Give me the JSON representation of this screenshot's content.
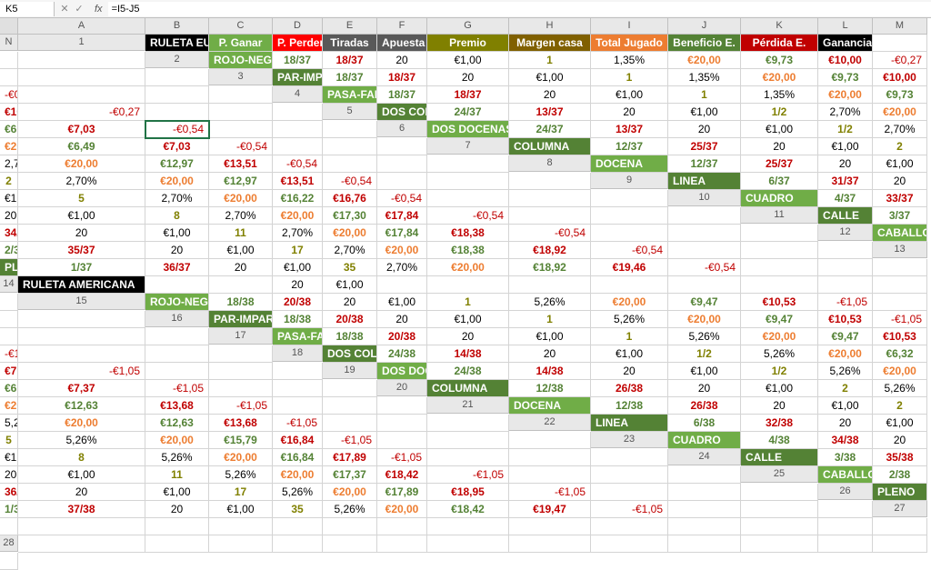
{
  "formula_bar": {
    "name_box": "K5",
    "fx_label": "fx",
    "formula": "=I5-J5"
  },
  "columns": [
    "A",
    "B",
    "C",
    "D",
    "E",
    "F",
    "G",
    "H",
    "I",
    "J",
    "K",
    "L",
    "M",
    "N"
  ],
  "headers": {
    "title": "RULETA EUROPEA",
    "p_ganar": "P. Ganar",
    "p_perder": "P. Perder",
    "tiradas": "Tiradas",
    "apuesta": "Apuesta",
    "premio": "Premio",
    "margen": "Margen casa",
    "jugado": "Total Jugado",
    "beneficio": "Beneficio E.",
    "perdida": "Pérdida E.",
    "ganancia": "Ganancia E."
  },
  "section2": "RULETA AMERICANA",
  "active_cell": {
    "row": 5,
    "col": "K"
  },
  "styling": {
    "header_colors": {
      "title": "#000000",
      "p_ganar": "#70ad47",
      "p_perder": "#ff0000",
      "tiradas": "#595959",
      "apuesta": "#595959",
      "premio": "#808000",
      "margen": "#806000",
      "jugado": "#ed7d31",
      "beneficio": "#548235",
      "perdida": "#c00000",
      "ganancia": "#000000"
    },
    "label_colors": {
      "dark": "#548235",
      "light": "#70ad47",
      "section": "#000000"
    },
    "text_colors": {
      "p_ganar": "#548235",
      "p_perder": "#c00000",
      "premio": "#808000",
      "jugado": "#ed7d31",
      "beneficio": "#548235",
      "perdida": "#c00000",
      "ganancia_neg": "#c00000"
    },
    "grid_color": "#d4d4d4",
    "header_border": "#c0c0c0",
    "font_family": "Arial",
    "font_size": 12,
    "active_outline": "#217346"
  },
  "rows_eu": [
    {
      "n": 2,
      "alt": true,
      "label": "ROJO-NEGRO",
      "pg": "18/37",
      "pp": "18/37",
      "t": "20",
      "a": "€1,00",
      "pr": "1",
      "m": "1,35%",
      "tj": "€20,00",
      "be": "€9,73",
      "pe": "€10,00",
      "g": "-€0,27"
    },
    {
      "n": 3,
      "alt": false,
      "label": "PAR-IMPAR",
      "pg": "18/37",
      "pp": "18/37",
      "t": "20",
      "a": "€1,00",
      "pr": "1",
      "m": "1,35%",
      "tj": "€20,00",
      "be": "€9,73",
      "pe": "€10,00",
      "g": "-€0,27"
    },
    {
      "n": 4,
      "alt": true,
      "label": "PASA-FALTA",
      "pg": "18/37",
      "pp": "18/37",
      "t": "20",
      "a": "€1,00",
      "pr": "1",
      "m": "1,35%",
      "tj": "€20,00",
      "be": "€9,73",
      "pe": "€10,00",
      "g": "-€0,27"
    },
    {
      "n": 5,
      "alt": false,
      "label": "DOS COLUMNAS",
      "pg": "24/37",
      "pp": "13/37",
      "t": "20",
      "a": "€1,00",
      "pr": "1/2",
      "m": "2,70%",
      "tj": "€20,00",
      "be": "€6,49",
      "pe": "€7,03",
      "g": "-€0,54"
    },
    {
      "n": 6,
      "alt": true,
      "label": "DOS DOCENAS",
      "pg": "24/37",
      "pp": "13/37",
      "t": "20",
      "a": "€1,00",
      "pr": "1/2",
      "m": "2,70%",
      "tj": "€20,00",
      "be": "€6,49",
      "pe": "€7,03",
      "g": "-€0,54"
    },
    {
      "n": 7,
      "alt": false,
      "label": "COLUMNA",
      "pg": "12/37",
      "pp": "25/37",
      "t": "20",
      "a": "€1,00",
      "pr": "2",
      "m": "2,70%",
      "tj": "€20,00",
      "be": "€12,97",
      "pe": "€13,51",
      "g": "-€0,54"
    },
    {
      "n": 8,
      "alt": true,
      "label": "DOCENA",
      "pg": "12/37",
      "pp": "25/37",
      "t": "20",
      "a": "€1,00",
      "pr": "2",
      "m": "2,70%",
      "tj": "€20,00",
      "be": "€12,97",
      "pe": "€13,51",
      "g": "-€0,54"
    },
    {
      "n": 9,
      "alt": false,
      "label": "LINEA",
      "pg": "6/37",
      "pp": "31/37",
      "t": "20",
      "a": "€1,00",
      "pr": "5",
      "m": "2,70%",
      "tj": "€20,00",
      "be": "€16,22",
      "pe": "€16,76",
      "g": "-€0,54"
    },
    {
      "n": 10,
      "alt": true,
      "label": "CUADRO",
      "pg": "4/37",
      "pp": "33/37",
      "t": "20",
      "a": "€1,00",
      "pr": "8",
      "m": "2,70%",
      "tj": "€20,00",
      "be": "€17,30",
      "pe": "€17,84",
      "g": "-€0,54"
    },
    {
      "n": 11,
      "alt": false,
      "label": "CALLE",
      "pg": "3/37",
      "pp": "34/37",
      "t": "20",
      "a": "€1,00",
      "pr": "11",
      "m": "2,70%",
      "tj": "€20,00",
      "be": "€17,84",
      "pe": "€18,38",
      "g": "-€0,54"
    },
    {
      "n": 12,
      "alt": true,
      "label": "CABALLO",
      "pg": "2/37",
      "pp": "35/37",
      "t": "20",
      "a": "€1,00",
      "pr": "17",
      "m": "2,70%",
      "tj": "€20,00",
      "be": "€18,38",
      "pe": "€18,92",
      "g": "-€0,54"
    },
    {
      "n": 13,
      "alt": false,
      "label": "PLENO",
      "pg": "1/37",
      "pp": "36/37",
      "t": "20",
      "a": "€1,00",
      "pr": "35",
      "m": "2,70%",
      "tj": "€20,00",
      "be": "€18,92",
      "pe": "€19,46",
      "g": "-€0,54"
    }
  ],
  "row14": {
    "n": 14,
    "t": "20",
    "a": "€1,00"
  },
  "rows_us": [
    {
      "n": 15,
      "alt": true,
      "label": "ROJO-NEGRO",
      "pg": "18/38",
      "pp": "20/38",
      "t": "20",
      "a": "€1,00",
      "pr": "1",
      "m": "5,26%",
      "tj": "€20,00",
      "be": "€9,47",
      "pe": "€10,53",
      "g": "-€1,05"
    },
    {
      "n": 16,
      "alt": false,
      "label": "PAR-IMPAR",
      "pg": "18/38",
      "pp": "20/38",
      "t": "20",
      "a": "€1,00",
      "pr": "1",
      "m": "5,26%",
      "tj": "€20,00",
      "be": "€9,47",
      "pe": "€10,53",
      "g": "-€1,05"
    },
    {
      "n": 17,
      "alt": true,
      "label": "PASA-FALTA",
      "pg": "18/38",
      "pp": "20/38",
      "t": "20",
      "a": "€1,00",
      "pr": "1",
      "m": "5,26%",
      "tj": "€20,00",
      "be": "€9,47",
      "pe": "€10,53",
      "g": "-€1,05"
    },
    {
      "n": 18,
      "alt": false,
      "label": "DOS COLUMNAS",
      "pg": "24/38",
      "pp": "14/38",
      "t": "20",
      "a": "€1,00",
      "pr": "1/2",
      "m": "5,26%",
      "tj": "€20,00",
      "be": "€6,32",
      "pe": "€7,37",
      "g": "-€1,05"
    },
    {
      "n": 19,
      "alt": true,
      "label": "DOS DOCENAS",
      "pg": "24/38",
      "pp": "14/38",
      "t": "20",
      "a": "€1,00",
      "pr": "1/2",
      "m": "5,26%",
      "tj": "€20,00",
      "be": "€6,32",
      "pe": "€7,37",
      "g": "-€1,05"
    },
    {
      "n": 20,
      "alt": false,
      "label": "COLUMNA",
      "pg": "12/38",
      "pp": "26/38",
      "t": "20",
      "a": "€1,00",
      "pr": "2",
      "m": "5,26%",
      "tj": "€20,00",
      "be": "€12,63",
      "pe": "€13,68",
      "g": "-€1,05"
    },
    {
      "n": 21,
      "alt": true,
      "label": "DOCENA",
      "pg": "12/38",
      "pp": "26/38",
      "t": "20",
      "a": "€1,00",
      "pr": "2",
      "m": "5,26%",
      "tj": "€20,00",
      "be": "€12,63",
      "pe": "€13,68",
      "g": "-€1,05"
    },
    {
      "n": 22,
      "alt": false,
      "label": "LINEA",
      "pg": "6/38",
      "pp": "32/38",
      "t": "20",
      "a": "€1,00",
      "pr": "5",
      "m": "5,26%",
      "tj": "€20,00",
      "be": "€15,79",
      "pe": "€16,84",
      "g": "-€1,05"
    },
    {
      "n": 23,
      "alt": true,
      "label": "CUADRO",
      "pg": "4/38",
      "pp": "34/38",
      "t": "20",
      "a": "€1,00",
      "pr": "8",
      "m": "5,26%",
      "tj": "€20,00",
      "be": "€16,84",
      "pe": "€17,89",
      "g": "-€1,05"
    },
    {
      "n": 24,
      "alt": false,
      "label": "CALLE",
      "pg": "3/38",
      "pp": "35/38",
      "t": "20",
      "a": "€1,00",
      "pr": "11",
      "m": "5,26%",
      "tj": "€20,00",
      "be": "€17,37",
      "pe": "€18,42",
      "g": "-€1,05"
    },
    {
      "n": 25,
      "alt": true,
      "label": "CABALLO",
      "pg": "2/38",
      "pp": "36/38",
      "t": "20",
      "a": "€1,00",
      "pr": "17",
      "m": "5,26%",
      "tj": "€20,00",
      "be": "€17,89",
      "pe": "€18,95",
      "g": "-€1,05"
    },
    {
      "n": 26,
      "alt": false,
      "label": "PLENO",
      "pg": "1/38",
      "pp": "37/38",
      "t": "20",
      "a": "€1,00",
      "pr": "35",
      "m": "5,26%",
      "tj": "€20,00",
      "be": "€18,42",
      "pe": "€19,47",
      "g": "-€1,05"
    }
  ],
  "empty_rows": [
    27,
    28
  ]
}
